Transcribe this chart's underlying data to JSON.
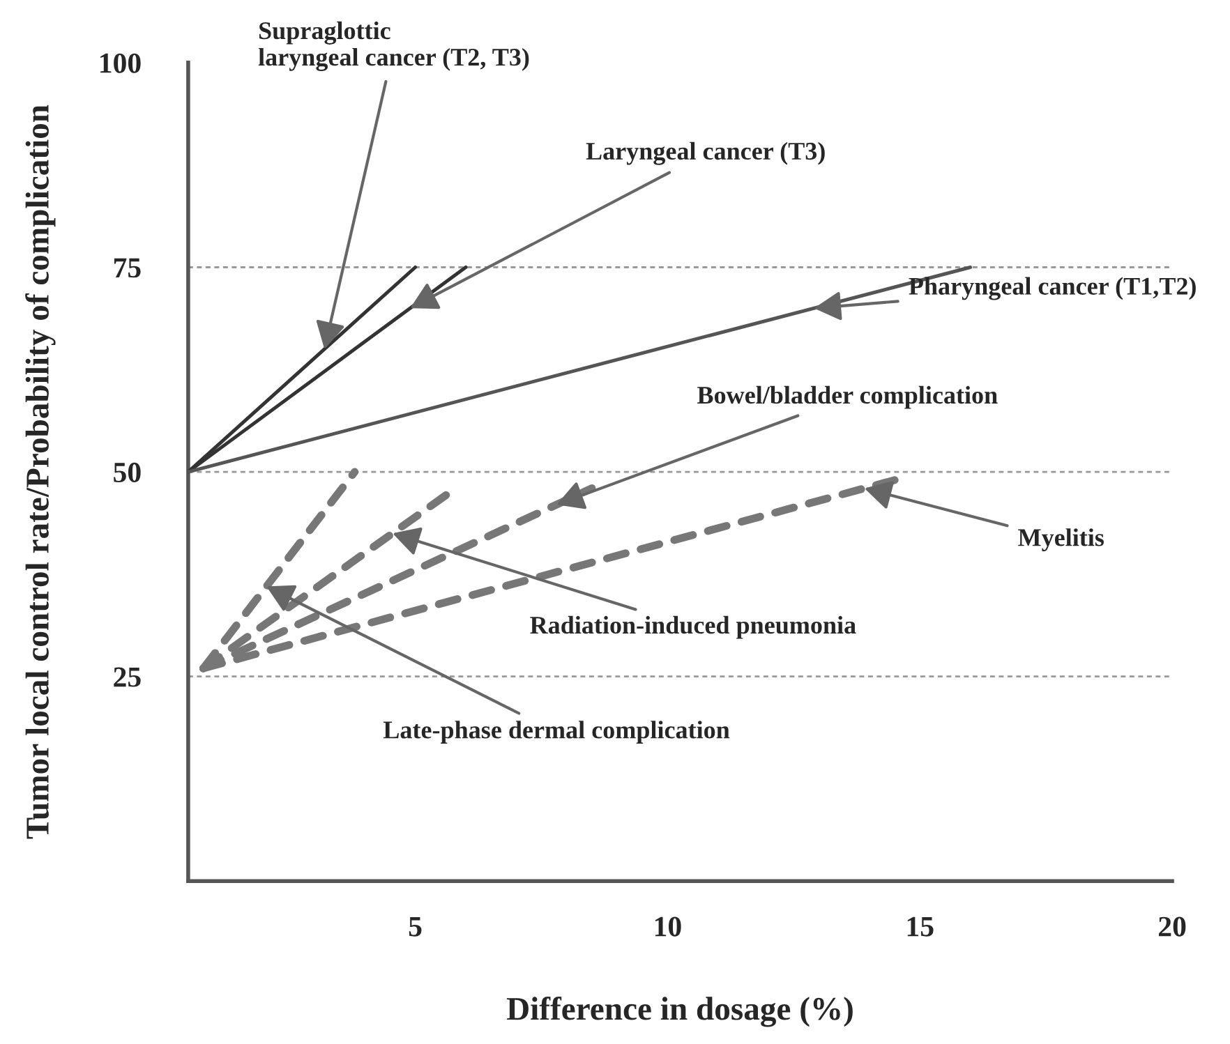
{
  "chart_data": {
    "type": "line",
    "xlabel": "Difference in dosage (%)",
    "ylabel": "Tumor local control rate/Probability of complication",
    "xlim": [
      0.5,
      20
    ],
    "xticks": [
      5,
      10,
      15,
      20
    ],
    "ylim": [
      0,
      100
    ],
    "yticks": [
      25,
      50,
      75,
      100
    ],
    "grid": false,
    "legend": false,
    "series": [
      {
        "color": "#333333",
        "line_style": "solid",
        "x": [
          0.5,
          5
        ],
        "values": [
          50,
          75
        ]
      },
      {
        "color": "#333333",
        "line_style": "solid",
        "x": [
          0.5,
          6
        ],
        "values": [
          50,
          75
        ]
      },
      {
        "color": "#555555",
        "line_style": "solid",
        "x": [
          0.5,
          16
        ],
        "values": [
          50,
          75
        ]
      },
      {
        "color": "#777777",
        "line_style": "dashed",
        "x": [
          0.8,
          3.8
        ],
        "values": [
          26,
          50
        ]
      },
      {
        "color": "#777777",
        "line_style": "dashed",
        "x": [
          0.8,
          5.8
        ],
        "values": [
          26,
          48
        ]
      },
      {
        "color": "#777777",
        "line_style": "dashed",
        "x": [
          0.8,
          8.5
        ],
        "values": [
          26,
          48
        ]
      },
      {
        "color": "#777777",
        "line_style": "dashed",
        "x": [
          0.8,
          14.5
        ],
        "values": [
          26,
          49
        ]
      }
    ],
    "ref_lines": [
      {
        "axis": "y",
        "value": 25,
        "color": "#999999",
        "line_style": "dashed"
      },
      {
        "axis": "y",
        "value": 50,
        "color": "#999999",
        "line_style": "dashed"
      },
      {
        "axis": "y",
        "value": 75,
        "color": "#999999",
        "line_style": "dashed"
      }
    ],
    "annotations": [
      {
        "text": "Supraglottic\nlaryngeal cancer (T2, T3)",
        "x": 3.2,
        "y": 65
      },
      {
        "text": "Laryngeal cancer (T3)",
        "x": 4.9,
        "y": 70
      },
      {
        "text": "Pharyngeal cancer (T1,T2)",
        "x": 12.9,
        "y": 70
      },
      {
        "text": "Bowel/bladder complication",
        "x": 7.8,
        "y": 46
      },
      {
        "text": "Myelitis",
        "x": 13.9,
        "y": 48
      },
      {
        "text": "Radiation-induced pneumonia",
        "x": 4.55,
        "y": 42.5
      },
      {
        "text": "Late-phase dermal complication",
        "x": 2.05,
        "y": 36
      }
    ]
  }
}
